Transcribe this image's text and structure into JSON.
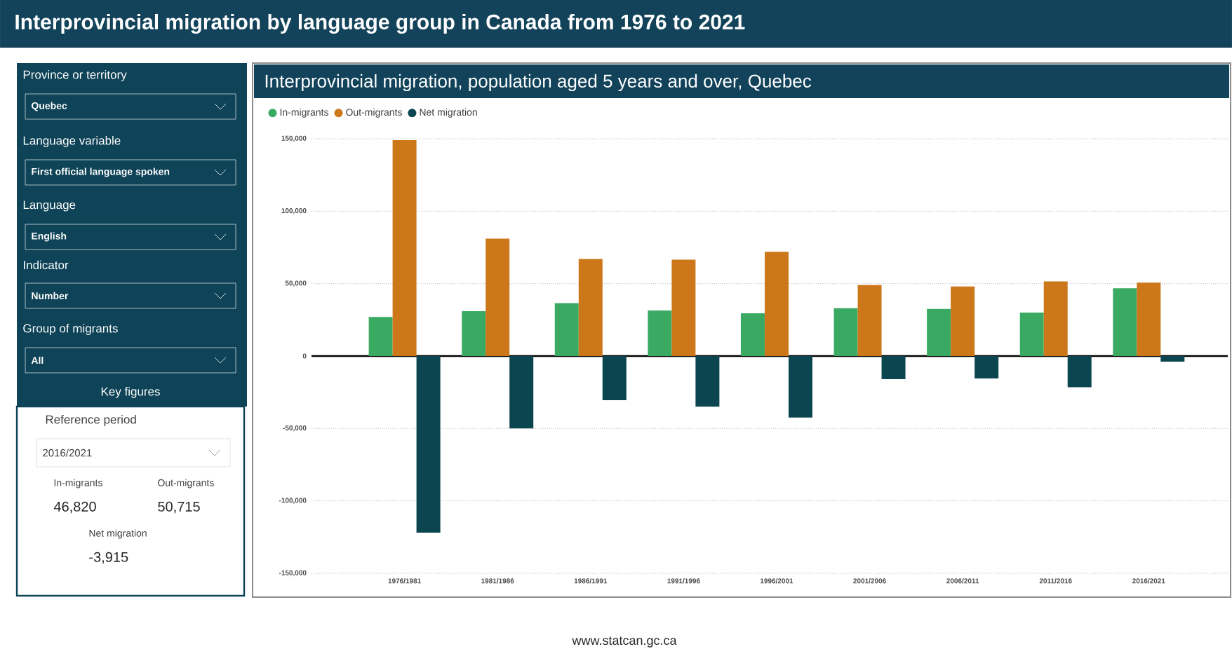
{
  "chart_data": [
    {
      "type": "other",
      "annotations": [
        "Province or territory",
        "Quebec",
        "Language variable",
        "First official language spoken",
        "Language",
        "English",
        "Indicator",
        "Number",
        "Group of migrants",
        "All",
        "Key figures",
        "Reference period",
        "2016/2021",
        "In-migrants",
        "46,820",
        "Out-migrants",
        "50,715",
        "Net migration",
        "-3,915"
      ]
    },
    {
      "type": "bar",
      "title": "Interprovincial migration by language group in Canada from 1976 to 2021",
      "subtitle": "Interprovincial migration, population aged 5 years and over, Quebec",
      "categories": [
        "1976/1981",
        "1981/1986",
        "1986/1991",
        "1991/1996",
        "1996/2001",
        "2001/2006",
        "2006/2011",
        "2011/2016",
        "2016/2021"
      ],
      "series": [
        {
          "name": "In-migrants",
          "color": "#3aaa63",
          "values": [
            27000,
            31000,
            36500,
            31500,
            29500,
            33000,
            32500,
            30000,
            46820
          ]
        },
        {
          "name": "Out-migrants",
          "color": "#cc771a",
          "values": [
            149000,
            81000,
            67000,
            66500,
            72000,
            49000,
            48000,
            51500,
            50715
          ]
        },
        {
          "name": "Net migration",
          "color": "#0b4550",
          "values": [
            -122000,
            -50000,
            -30500,
            -35000,
            -42500,
            -16000,
            -15500,
            -21500,
            -3915
          ]
        }
      ],
      "ylim": [
        -150000,
        150000
      ],
      "yticks": [
        {
          "value": -150000,
          "label": "-150,000"
        },
        {
          "value": -100000,
          "label": "-100,000"
        },
        {
          "value": -50000,
          "label": "-50,000"
        },
        0,
        {
          "value": 50000,
          "label": "50,000"
        },
        {
          "value": 100000,
          "label": "100,000"
        },
        {
          "value": 150000,
          "label": "150,000"
        }
      ],
      "grid": "y",
      "legend": "top left",
      "annotations": [
        "www.statcan.gc.ca"
      ]
    }
  ]
}
